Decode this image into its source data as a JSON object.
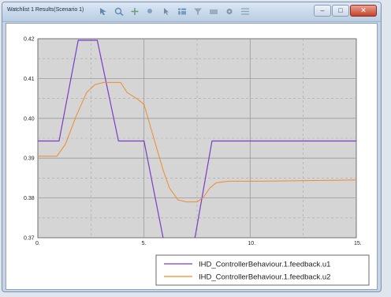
{
  "window": {
    "title": "Watchlist 1 Results(Scenario 1)",
    "controls": {
      "minimize": "–",
      "maximize": "□",
      "close": "✕"
    }
  },
  "toolbar": {
    "icons": [
      "select-icon",
      "zoom-icon",
      "pan-icon",
      "search-icon",
      "cursor-icon",
      "table-icon",
      "filter-icon",
      "export-icon",
      "settings-icon",
      "grid-icon"
    ]
  },
  "colors": {
    "plot_background": "#d5d5d5",
    "series_u1": "#7a3cc8",
    "series_u2": "#ef8a2c",
    "grid_major": "#9a9a9a"
  },
  "chart_data": {
    "type": "line",
    "xlim": [
      0,
      15
    ],
    "ylim": [
      0.37,
      0.42
    ],
    "xticks": [
      "0.",
      "5.",
      "10.",
      "15."
    ],
    "xtick_values": [
      0,
      5,
      10,
      15
    ],
    "yticks": [
      "0.42",
      "0.41",
      "0.40",
      "0.39",
      "0.38",
      "0.37"
    ],
    "ytick_values": [
      0.42,
      0.41,
      0.4,
      0.39,
      0.38,
      0.37
    ],
    "grid": true,
    "legend_position": "bottom-right",
    "series": [
      {
        "name": "IHD_ControllerBehaviour.1.feedback.u1",
        "x": [
          0,
          1.0,
          1.9,
          2.8,
          3.8,
          4.5,
          5.0,
          5.9,
          6.2,
          6.8,
          7.4,
          8.2,
          15.0
        ],
        "y": [
          0.3943,
          0.3943,
          0.4196,
          0.4196,
          0.3943,
          0.3943,
          0.3943,
          0.37,
          0.3683,
          0.3683,
          0.37,
          0.3943,
          0.3943
        ]
      },
      {
        "name": "IHD_ControllerBehaviour.1.feedback.u2",
        "x": [
          0,
          0.9,
          1.3,
          1.8,
          2.3,
          2.7,
          3.1,
          3.6,
          3.9,
          4.2,
          4.7,
          5.0,
          5.3,
          5.6,
          5.9,
          6.2,
          6.6,
          7.0,
          7.5,
          7.8,
          8.1,
          8.4,
          9.0,
          10.5,
          15.0
        ],
        "y": [
          0.3905,
          0.3905,
          0.3935,
          0.4005,
          0.4065,
          0.4085,
          0.409,
          0.409,
          0.409,
          0.4065,
          0.4048,
          0.4035,
          0.398,
          0.3925,
          0.387,
          0.3825,
          0.3795,
          0.379,
          0.379,
          0.3802,
          0.3825,
          0.3838,
          0.3842,
          0.3842,
          0.3845
        ]
      }
    ]
  }
}
